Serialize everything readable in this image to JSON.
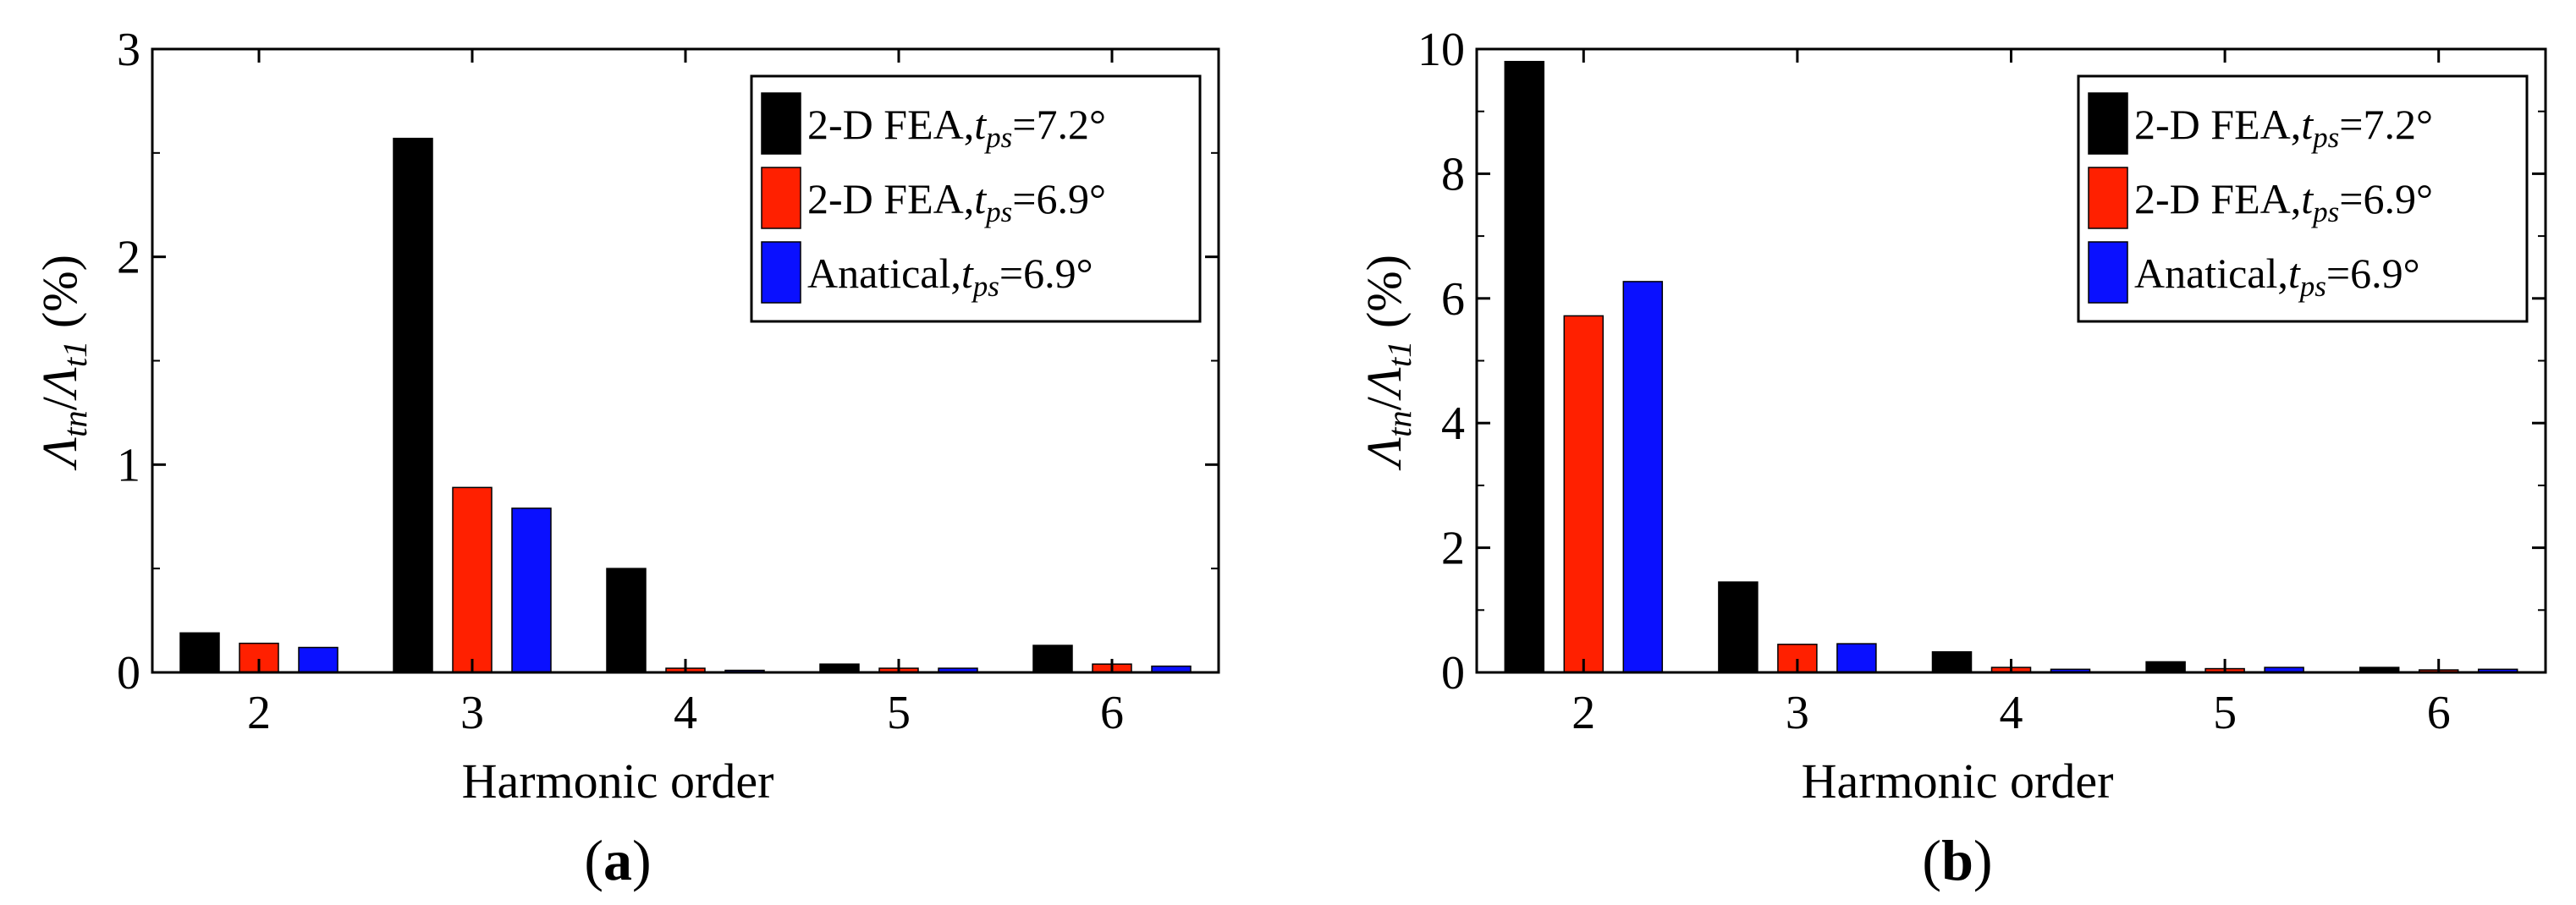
{
  "figure": {
    "panel_labels": [
      "(a)",
      "(b)"
    ]
  },
  "colors": {
    "series": [
      "#000000",
      "#ff2000",
      "#0a10ff"
    ]
  },
  "chart_data": [
    {
      "type": "bar",
      "panel": "a",
      "categories": [
        "2",
        "3",
        "4",
        "5",
        "6"
      ],
      "series": [
        {
          "name": "2-D FEA,t_ps=7.2°",
          "values": [
            0.19,
            2.57,
            0.5,
            0.04,
            0.13
          ]
        },
        {
          "name": "2-D FEA,t_ps=6.9°",
          "values": [
            0.14,
            0.89,
            0.02,
            0.02,
            0.04
          ]
        },
        {
          "name": "Anatical,t_ps=6.9°",
          "values": [
            0.12,
            0.79,
            0.01,
            0.02,
            0.03
          ]
        }
      ],
      "title": "",
      "xlabel": "Harmonic order",
      "ylabel": "Λtn/Λt1 (%)",
      "ylim": [
        0,
        3
      ],
      "yticks": [
        "0",
        "1",
        "2",
        "3"
      ],
      "legend_position": "top-right",
      "grid": false
    },
    {
      "type": "bar",
      "panel": "b",
      "categories": [
        "2",
        "3",
        "4",
        "5",
        "6"
      ],
      "series": [
        {
          "name": "2-D FEA,t_ps=7.2°",
          "values": [
            9.8,
            1.45,
            0.33,
            0.17,
            0.08
          ]
        },
        {
          "name": "2-D FEA,t_ps=6.9°",
          "values": [
            5.72,
            0.45,
            0.08,
            0.06,
            0.04
          ]
        },
        {
          "name": "Anatical,t_ps=6.9°",
          "values": [
            6.27,
            0.46,
            0.05,
            0.08,
            0.05
          ]
        }
      ],
      "title": "",
      "xlabel": "Harmonic order",
      "ylabel": "Λtn/Λt1 (%)",
      "ylim": [
        0,
        10
      ],
      "yticks": [
        "0",
        "2",
        "4",
        "6",
        "8",
        "10"
      ],
      "legend_position": "top-right",
      "grid": false
    }
  ]
}
